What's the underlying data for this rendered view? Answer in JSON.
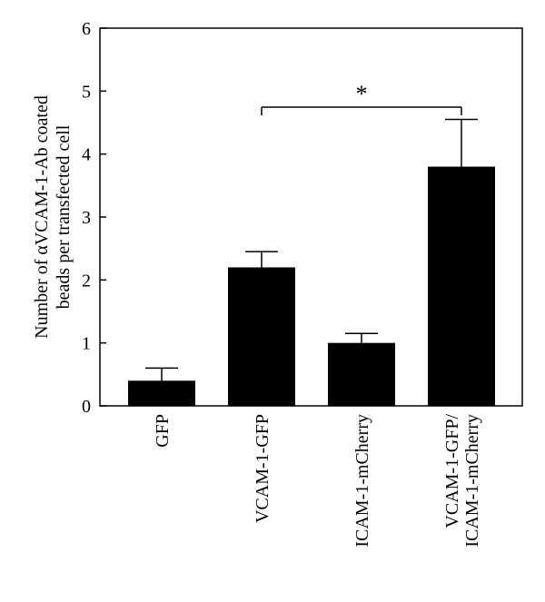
{
  "chart_data": {
    "type": "bar",
    "categories": [
      "GFP",
      "VCAM-1-GFP",
      "ICAM-1-mCherry",
      "VCAM-1-GFP/\nICAM-1-mCherry"
    ],
    "values": [
      0.4,
      2.2,
      1.0,
      3.8
    ],
    "error_bars": [
      0.2,
      0.25,
      0.15,
      0.75
    ],
    "ylabel_lines": [
      "Number of αVCAM-1-Ab coated",
      "beads per transfected cell"
    ],
    "ylim": [
      0,
      6
    ],
    "yticks": [
      "0",
      "1",
      "2",
      "3",
      "4",
      "5",
      "6"
    ],
    "bar_color": "#000000",
    "significance": {
      "label": "*",
      "from": 1,
      "to": 3
    },
    "grid": false,
    "legend": "none"
  }
}
